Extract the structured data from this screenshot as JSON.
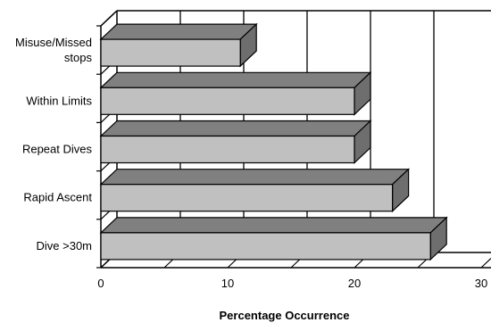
{
  "chart_data": {
    "type": "bar",
    "orientation": "horizontal",
    "style": "3d",
    "title": "",
    "xlabel": "Percentage Occurrence",
    "ylabel": "",
    "xlim": [
      0,
      30
    ],
    "xticks": [
      0,
      10,
      20,
      30
    ],
    "grid": true,
    "legend": "none",
    "categories": [
      "Misuse/Missed stops",
      "Within Limits",
      "Repeat Dives",
      "Rapid Ascent",
      "Dive >30m"
    ],
    "category_lines": [
      [
        "Misuse/Missed",
        "stops"
      ],
      [
        "Within Limits"
      ],
      [
        "Repeat Dives"
      ],
      [
        "Rapid Ascent"
      ],
      [
        "Dive >30m"
      ]
    ],
    "values": [
      11,
      20,
      20,
      23,
      26
    ],
    "colors": {
      "bar_front": "#c0c0c0",
      "bar_top": "#808080",
      "bar_side": "#6e6e6e",
      "grid": "#000000"
    }
  }
}
